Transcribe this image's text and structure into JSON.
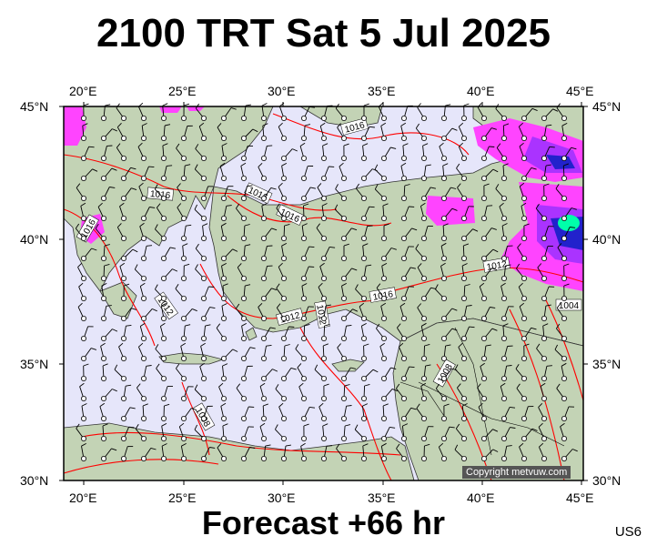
{
  "title": "2100 TRT Sat 5 Jul 2025",
  "footer": "Forecast +66 hr",
  "code": "US6",
  "copyright": "Copyright metvuw.com",
  "longitude_labels": [
    "20°E",
    "25°E",
    "30°E",
    "35°E",
    "40°E",
    "45°E"
  ],
  "latitude_labels": [
    "45°N",
    "40°N",
    "35°N",
    "30°N"
  ],
  "isobar_labels": [
    "1016",
    "1016",
    "1016",
    "1016",
    "1016",
    "1012",
    "1012",
    "1016",
    "1012",
    "1012",
    "1008",
    "1008",
    "1004"
  ],
  "colors": {
    "sea": "#e6e6fa",
    "land": "#c3d3b5",
    "isobar": "#ff0000",
    "precip_light": "#ff44ff",
    "precip_mid": "#aa33ff",
    "precip_heavy": "#2222cc",
    "precip_max": "#00ffaa"
  }
}
